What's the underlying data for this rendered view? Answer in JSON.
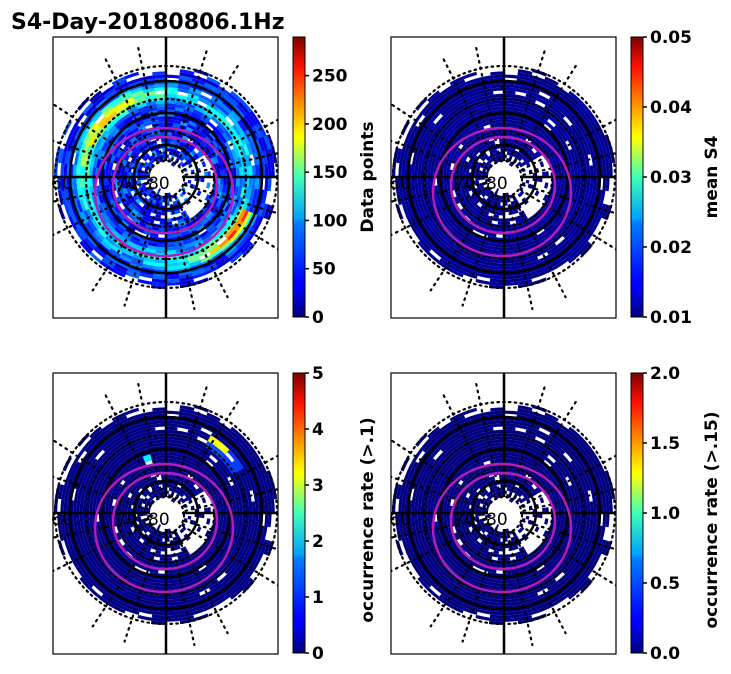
{
  "figure_title": "S4-Day-20180806.1Hz",
  "chart_data": [
    {
      "type": "heatmap",
      "projection": "polar (magnetic latitude / local time)",
      "title": "",
      "panel": "top-left",
      "latitude_labels": [
        "60",
        "70",
        "80"
      ],
      "colorbar": {
        "label": "Data points",
        "colormap": "jet",
        "range": [
          0,
          290
        ],
        "ticks": [
          "0",
          "50",
          "100",
          "150",
          "200",
          "250"
        ],
        "tick_values": [
          0,
          50,
          100,
          150,
          200,
          250
        ]
      },
      "description": "Mostly 20-150 data points per bin, highest (200-290) on dusk/pre-noon sector near 60-65 deg",
      "max_value_estimate": 280
    },
    {
      "type": "heatmap",
      "projection": "polar (magnetic latitude / local time)",
      "panel": "top-right",
      "latitude_labels": [
        "60",
        "70",
        "80"
      ],
      "colorbar": {
        "label": "mean S4",
        "colormap": "jet",
        "range": [
          0.01,
          0.05
        ],
        "ticks": [
          "0.01",
          "0.02",
          "0.03",
          "0.04",
          "0.05"
        ],
        "tick_values": [
          0.01,
          0.02,
          0.03,
          0.04,
          0.05
        ]
      },
      "description": "Uniformly low mean S4 (~0.01) across all bins",
      "max_value_estimate": 0.012
    },
    {
      "type": "heatmap",
      "projection": "polar (magnetic latitude / local time)",
      "panel": "bottom-left",
      "latitude_labels": [
        "60",
        "70",
        "80"
      ],
      "colorbar": {
        "label": "occurrence rate (>.1)",
        "colormap": "jet",
        "range": [
          0,
          5
        ],
        "ticks": [
          "0",
          "1",
          "2",
          "3",
          "4",
          "5"
        ],
        "tick_values": [
          0,
          1,
          2,
          3,
          4,
          5
        ]
      },
      "description": "Near-zero everywhere; a few bins on the pre-noon/dusk side near 62 deg reach ~1-3",
      "max_value_estimate": 3.2
    },
    {
      "type": "heatmap",
      "projection": "polar (magnetic latitude / local time)",
      "panel": "bottom-right",
      "latitude_labels": [
        "60",
        "70",
        "80"
      ],
      "colorbar": {
        "label": "occurrence rate (>.15)",
        "colormap": "jet",
        "range": [
          0.0,
          2.0
        ],
        "ticks": [
          "0.0",
          "0.5",
          "1.0",
          "1.5",
          "2.0"
        ],
        "tick_values": [
          0.0,
          0.5,
          1.0,
          1.5,
          2.0
        ]
      },
      "description": "Zero occurrence in all bins",
      "max_value_estimate": 0.0
    }
  ],
  "overlay": {
    "auroral_oval_color": "#b61cb8",
    "grid_color": "#000000"
  }
}
